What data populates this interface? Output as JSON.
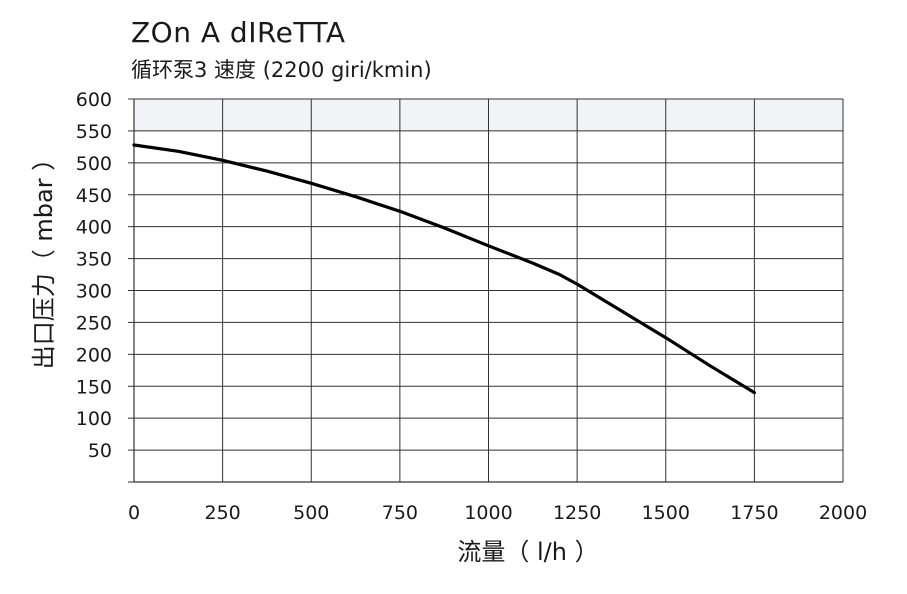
{
  "header": {
    "title": "ZOn A dIReTTA",
    "subtitle": "循环泵3 速度 (2200 giri/kmin)"
  },
  "colors": {
    "curve": "#000000",
    "grid": "#333333",
    "top_band": "#f1f3f6"
  },
  "chart_data": {
    "type": "line",
    "title": "ZOn A dIReTTA",
    "subtitle": "循环泵3 速度 (2200 giri/kmin)",
    "xlabel": "流量（ l/h ）",
    "ylabel": "出口压力（ mbar ）",
    "xlim": [
      0,
      2000
    ],
    "ylim": [
      0,
      600
    ],
    "x_ticks": [
      0,
      250,
      500,
      750,
      1000,
      1250,
      1500,
      1750,
      2000
    ],
    "y_ticks": [
      50,
      100,
      150,
      200,
      250,
      300,
      350,
      400,
      450,
      500,
      550,
      600
    ],
    "grid": true,
    "series": [
      {
        "x": [
          0,
          125,
          250,
          375,
          500,
          625,
          750,
          875,
          1000,
          1125,
          1200,
          1250,
          1375,
          1500,
          1625,
          1750
        ],
        "y": [
          528,
          518,
          504,
          487,
          468,
          447,
          424,
          398,
          370,
          343,
          325,
          310,
          268,
          226,
          182,
          140
        ]
      }
    ]
  }
}
